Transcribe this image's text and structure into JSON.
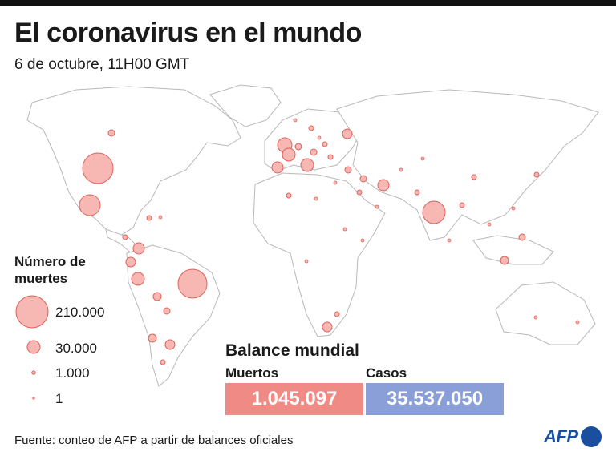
{
  "title": "El coronavirus en el mundo",
  "subtitle": "6 de octubre, 11H00 GMT",
  "legend": {
    "title": "Número de muertes",
    "items": [
      {
        "label": "210.000",
        "value": 210000
      },
      {
        "label": "30.000",
        "value": 30000
      },
      {
        "label": "1.000",
        "value": 1000
      },
      {
        "label": "1",
        "value": 1
      }
    ]
  },
  "balance": {
    "title": "Balance mundial",
    "deaths_label": "Muertos",
    "deaths_value": "1.045.097",
    "cases_label": "Casos",
    "cases_value": "35.537.050"
  },
  "source": "Fuente: conteo de AFP a partir de balances oficiales",
  "logo": "AFP",
  "colors": {
    "bubble_fill": "#f7b7b3",
    "bubble_stroke": "#e0605a",
    "deaths_box": "#f08a85",
    "cases_box": "#8a9fd8",
    "logo": "#1a4f9f"
  }
}
